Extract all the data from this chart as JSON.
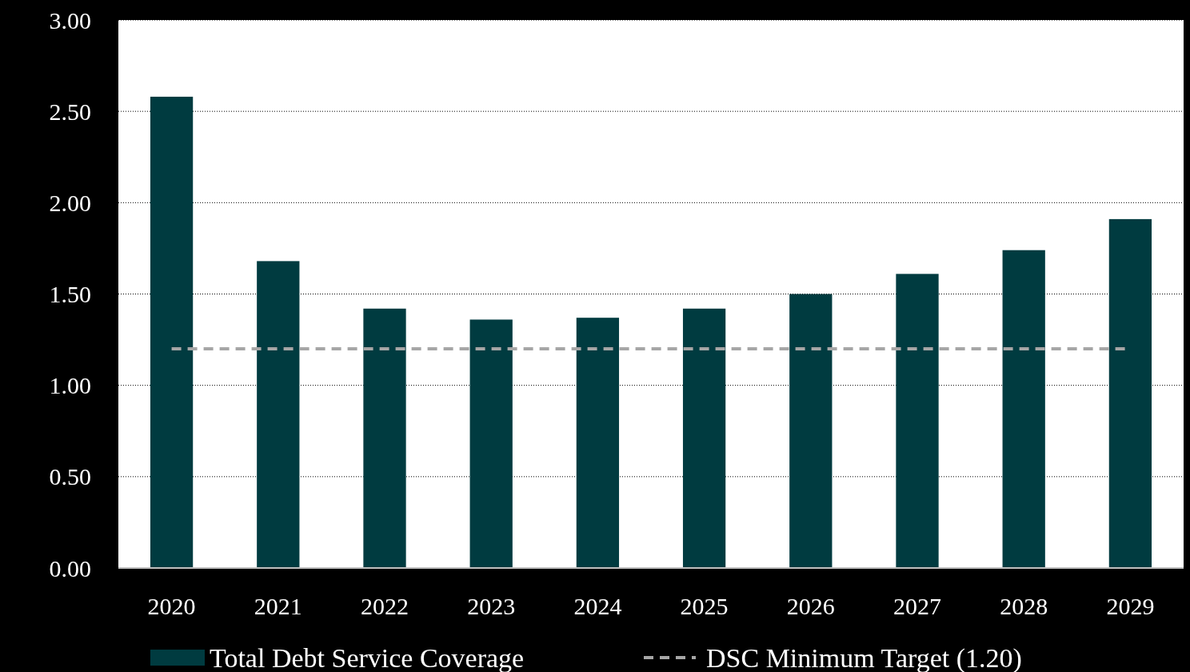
{
  "chart_data": {
    "type": "bar",
    "categories": [
      "2020",
      "2021",
      "2022",
      "2023",
      "2024",
      "2025",
      "2026",
      "2027",
      "2028",
      "2029"
    ],
    "series": [
      {
        "name": "Total Debt Service Coverage",
        "color": "#003b40",
        "values": [
          2.58,
          1.68,
          1.42,
          1.36,
          1.37,
          1.42,
          1.5,
          1.61,
          1.74,
          1.91
        ]
      }
    ],
    "ylim": [
      0,
      3
    ],
    "yticks": [
      {
        "value": 0,
        "label": "0.00"
      },
      {
        "value": 0.5,
        "label": "0.50"
      },
      {
        "value": 1,
        "label": "1.00"
      },
      {
        "value": 1.5,
        "label": "1.50"
      },
      {
        "value": 2,
        "label": "2.00"
      },
      {
        "value": 2.5,
        "label": "2.50"
      },
      {
        "value": 3,
        "label": "3.00"
      }
    ],
    "ref_lines": [
      {
        "axis": "y",
        "value": 1.2,
        "label": "DSC Minimum Target (1.20)",
        "color": "#a6a6a6",
        "line_style": "dashed"
      }
    ],
    "grid": "y",
    "legend": "bottom"
  }
}
